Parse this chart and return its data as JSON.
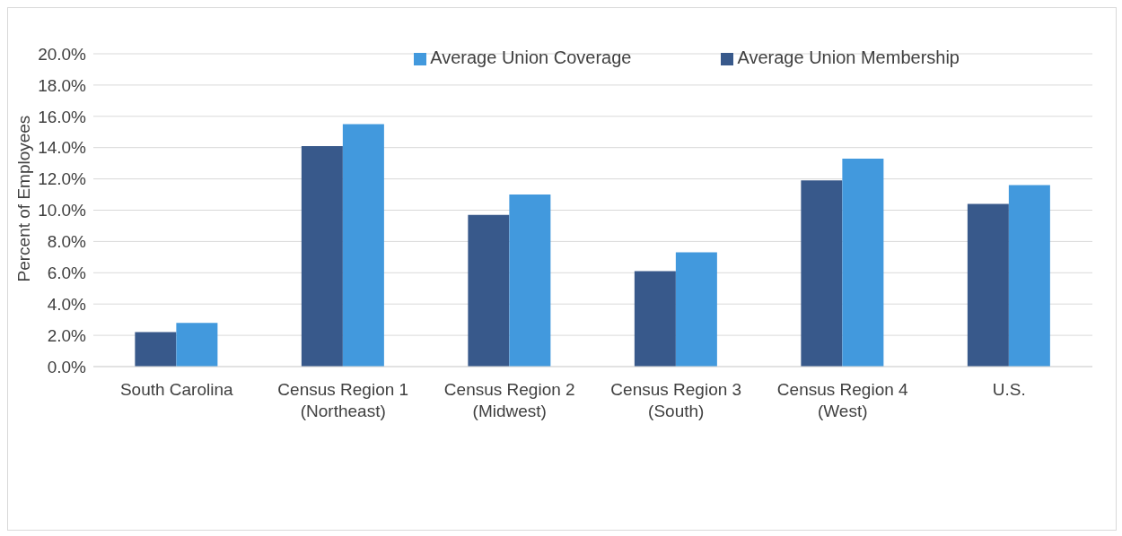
{
  "chart_data": {
    "type": "bar",
    "categories": [
      "South Carolina",
      "Census Region 1\n(Northeast)",
      "Census Region 2\n(Midwest)",
      "Census Region 3\n(South)",
      "Census Region 4\n(West)",
      "U.S."
    ],
    "series": [
      {
        "name": "Average Union Membership",
        "color": "#38598b",
        "values": [
          2.2,
          14.1,
          9.7,
          6.1,
          11.9,
          10.4
        ]
      },
      {
        "name": "Average Union Coverage",
        "color": "#4299dd",
        "values": [
          2.8,
          15.5,
          11.0,
          7.3,
          13.3,
          11.6
        ]
      }
    ],
    "ylabel": "Percent of Employees",
    "ylim": [
      0,
      20
    ],
    "yticks": [
      {
        "value": 0,
        "label": "0.0%"
      },
      {
        "value": 2,
        "label": "2.0%"
      },
      {
        "value": 4,
        "label": "4.0%"
      },
      {
        "value": 6,
        "label": "6.0%"
      },
      {
        "value": 8,
        "label": "8.0%"
      },
      {
        "value": 10,
        "label": "10.0%"
      },
      {
        "value": 12,
        "label": "12.0%"
      },
      {
        "value": 14,
        "label": "14.0%"
      },
      {
        "value": 16,
        "label": "16.0%"
      },
      {
        "value": 18,
        "label": "18.0%"
      },
      {
        "value": 20,
        "label": "20.0%"
      }
    ],
    "grid": "y",
    "legend": "top right"
  }
}
